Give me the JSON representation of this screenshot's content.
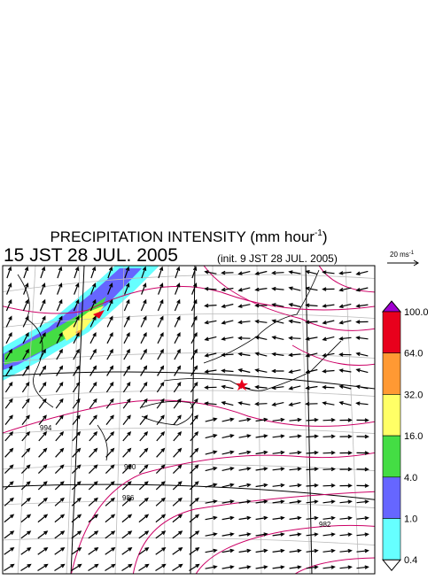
{
  "header": {
    "title": "PRECIPITATION INTENSITY (mm hour",
    "title_sup": "-1",
    "title_end": ")",
    "time": "15 JST 28 JUL. 2005",
    "init": "(init. 9 JST 28 JUL. 2005)"
  },
  "reference_vector": {
    "label": "20 ms",
    "sup": "-1"
  },
  "colorbar": {
    "labels": [
      "100.0",
      "64.0",
      "32.0",
      "16.0",
      "4.0",
      "1.0",
      "0.4"
    ],
    "colors": [
      "#a000d0",
      "#e8001c",
      "#ff9933",
      "#ffff66",
      "#44dd44",
      "#6666ff",
      "#66ffff",
      "#ffffff"
    ]
  },
  "contour_labels": [
    "994",
    "990",
    "986",
    "982"
  ]
}
